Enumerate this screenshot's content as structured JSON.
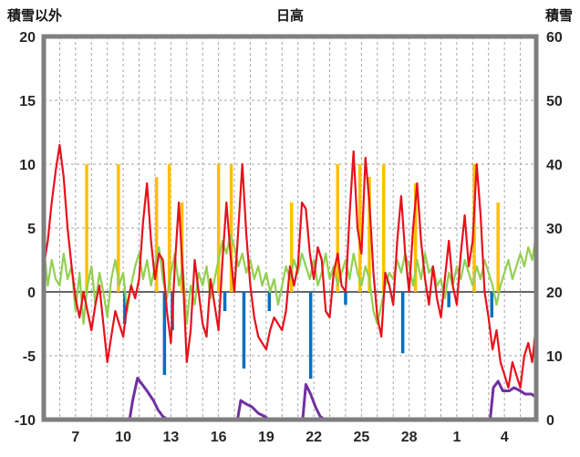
{
  "chart_data": {
    "type": "line",
    "title": "日高",
    "legend": "none",
    "grid": true,
    "colors": {
      "red_line": "#e8101c",
      "green_line": "#92d050",
      "orange_bars": "#ffc000",
      "blue_bars": "#0070c0",
      "purple_line": "#7030a0",
      "frame": "#7f7f7f",
      "gridline": "#a6a6a6",
      "zero_line": "#333333",
      "text": "#262626",
      "plot_bg": "#ffffff"
    },
    "left_axis": {
      "label": "積雪以外",
      "min": -10,
      "max": 20,
      "ticks": [
        {
          "label": "20",
          "value": 20
        },
        {
          "label": "15",
          "value": 15
        },
        {
          "label": "10",
          "value": 10
        },
        {
          "label": "5",
          "value": 5
        },
        {
          "label": "0",
          "value": 0
        },
        {
          "label": "-5",
          "value": -5
        },
        {
          "label": "-10",
          "value": -10
        }
      ]
    },
    "right_axis": {
      "label": "積雪",
      "min": 0,
      "max": 60,
      "ticks": [
        {
          "label": "60",
          "value": 60
        },
        {
          "label": "50",
          "value": 50
        },
        {
          "label": "40",
          "value": 40
        },
        {
          "label": "30",
          "value": 30
        },
        {
          "label": "20",
          "value": 20
        },
        {
          "label": "10",
          "value": 10
        },
        {
          "label": "0",
          "value": 0
        }
      ]
    },
    "x_axis": {
      "min": 5,
      "max": 36,
      "daily_gridlines": true,
      "ticks": [
        {
          "label": "7",
          "day": 7
        },
        {
          "label": "10",
          "day": 10
        },
        {
          "label": "13",
          "day": 13
        },
        {
          "label": "16",
          "day": 16
        },
        {
          "label": "19",
          "day": 19
        },
        {
          "label": "22",
          "day": 22
        },
        {
          "label": "25",
          "day": 25
        },
        {
          "label": "28",
          "day": 28
        },
        {
          "label": "1",
          "day": 31
        },
        {
          "label": "4",
          "day": 34
        }
      ]
    },
    "series": [
      {
        "name": "red-line",
        "axis": "left",
        "start": 5,
        "step": 0.25,
        "values": [
          2,
          4,
          7,
          9.5,
          11.5,
          9,
          5,
          2,
          -0.5,
          -2,
          0,
          -1.5,
          -3,
          -1,
          0.5,
          -2.5,
          -5.5,
          -3.5,
          -1.5,
          -2.5,
          -3.5,
          -1,
          0.5,
          -0.5,
          1,
          5.5,
          8.5,
          4,
          1,
          3,
          2.5,
          -1.5,
          -4,
          2,
          7,
          1.5,
          -5.5,
          -3,
          2.5,
          0,
          -2.5,
          -3.5,
          1,
          -1,
          -3,
          2.5,
          7,
          3,
          0,
          5,
          10,
          4.5,
          0.5,
          -2,
          -3.5,
          -4,
          -4.5,
          -3,
          -2,
          -2.5,
          -3,
          -1.5,
          2,
          0.5,
          2,
          7,
          6.5,
          3,
          1,
          3.5,
          2.5,
          -1.5,
          -2,
          1.5,
          3,
          0.5,
          0,
          6,
          11,
          5,
          3,
          10.5,
          7,
          1.5,
          -2,
          -3.5,
          1.5,
          0.5,
          -1,
          4,
          7.5,
          3,
          0,
          5,
          8.5,
          4,
          1,
          -1,
          2,
          -0.5,
          -2,
          1,
          4,
          0.5,
          -1,
          3,
          6,
          2,
          4,
          10,
          6,
          0,
          -2,
          -4.5,
          -3,
          -5.5,
          -6.5,
          -7.5,
          -5.5,
          -6.5,
          -7.5,
          -5,
          -4,
          -5.5,
          -2.5
        ]
      },
      {
        "name": "green-line",
        "axis": "left",
        "start": 5,
        "step": 0.25,
        "values": [
          3.5,
          0.5,
          2.5,
          1,
          0.5,
          3,
          1,
          2,
          -1.5,
          1.5,
          -2.5,
          0.5,
          2,
          -1,
          1.5,
          0,
          -2,
          1,
          2.5,
          0.5,
          1.5,
          -1.5,
          0.5,
          2,
          3,
          1,
          2.5,
          0.5,
          2,
          3.5,
          1,
          -0.5,
          1.5,
          3,
          0.5,
          2,
          -2.5,
          0.5,
          -1,
          1.5,
          0.5,
          2,
          -0.5,
          1,
          2.5,
          4,
          3,
          4.5,
          3.5,
          2,
          3,
          1.5,
          2.5,
          1,
          2,
          0.5,
          1.5,
          0,
          1,
          -1,
          0.5,
          2,
          1,
          2.5,
          1.5,
          3,
          2,
          1,
          2.5,
          0.5,
          1.5,
          3,
          1,
          2,
          0.5,
          1.5,
          2.5,
          1,
          3,
          1.5,
          0.5,
          2,
          1,
          -1.5,
          -2.5,
          -1,
          0.5,
          1.5,
          1,
          2.5,
          1.5,
          3,
          2,
          0.5,
          2.5,
          1,
          3,
          1.5,
          2,
          0.5,
          1,
          -0.5,
          1.5,
          0.5,
          2,
          1,
          2.5,
          1.5,
          0.5,
          2,
          1,
          2.5,
          1.5,
          0.5,
          -1,
          0.5,
          1.5,
          2.5,
          1,
          2,
          3,
          2,
          3.5,
          2.5,
          4.5
        ]
      }
    ],
    "purple_line": {
      "name": "purple-line",
      "axis": "right",
      "points": [
        [
          5,
          0
        ],
        [
          10.4,
          0
        ],
        [
          10.6,
          3
        ],
        [
          10.9,
          6.5
        ],
        [
          11.2,
          5.5
        ],
        [
          11.5,
          4.5
        ],
        [
          11.9,
          3
        ],
        [
          12.2,
          1.5
        ],
        [
          12.5,
          0.5
        ],
        [
          12.8,
          0
        ],
        [
          17.2,
          0
        ],
        [
          17.4,
          3
        ],
        [
          17.7,
          2.5
        ],
        [
          18.1,
          2
        ],
        [
          18.5,
          1
        ],
        [
          18.9,
          0.5
        ],
        [
          19.2,
          0
        ],
        [
          21.3,
          0
        ],
        [
          21.5,
          5.5
        ],
        [
          21.8,
          4
        ],
        [
          22.1,
          2
        ],
        [
          22.4,
          0.5
        ],
        [
          22.7,
          0
        ],
        [
          33.1,
          0
        ],
        [
          33.3,
          5
        ],
        [
          33.6,
          6
        ],
        [
          33.9,
          4.5
        ],
        [
          34.3,
          4.5
        ],
        [
          34.6,
          5
        ],
        [
          35,
          4.5
        ],
        [
          35.3,
          4
        ],
        [
          35.7,
          4
        ],
        [
          36,
          3.5
        ]
      ]
    },
    "orange_bars": {
      "name": "orange-bars",
      "axis": "left",
      "events": [
        [
          7.7,
          10
        ],
        [
          9.7,
          10
        ],
        [
          12.1,
          9
        ],
        [
          12.9,
          10
        ],
        [
          13.7,
          7
        ],
        [
          16,
          10
        ],
        [
          16.8,
          10
        ],
        [
          20.6,
          7
        ],
        [
          23.5,
          10
        ],
        [
          24.9,
          10
        ],
        [
          25.5,
          9
        ],
        [
          26.4,
          10
        ],
        [
          28.4,
          8.5
        ],
        [
          32.1,
          10
        ],
        [
          33.6,
          7
        ]
      ]
    },
    "blue_bars": {
      "name": "blue-bars",
      "axis": "left",
      "events": [
        [
          10.1,
          -2.5
        ],
        [
          12.6,
          -6.5
        ],
        [
          13.1,
          -3
        ],
        [
          16.4,
          -1.5
        ],
        [
          17.6,
          -6
        ],
        [
          19.2,
          -1.5
        ],
        [
          21.8,
          -6.8
        ],
        [
          24,
          -1
        ],
        [
          27.6,
          -4.8
        ],
        [
          30.5,
          -1.2
        ],
        [
          33.2,
          -2
        ]
      ]
    }
  }
}
